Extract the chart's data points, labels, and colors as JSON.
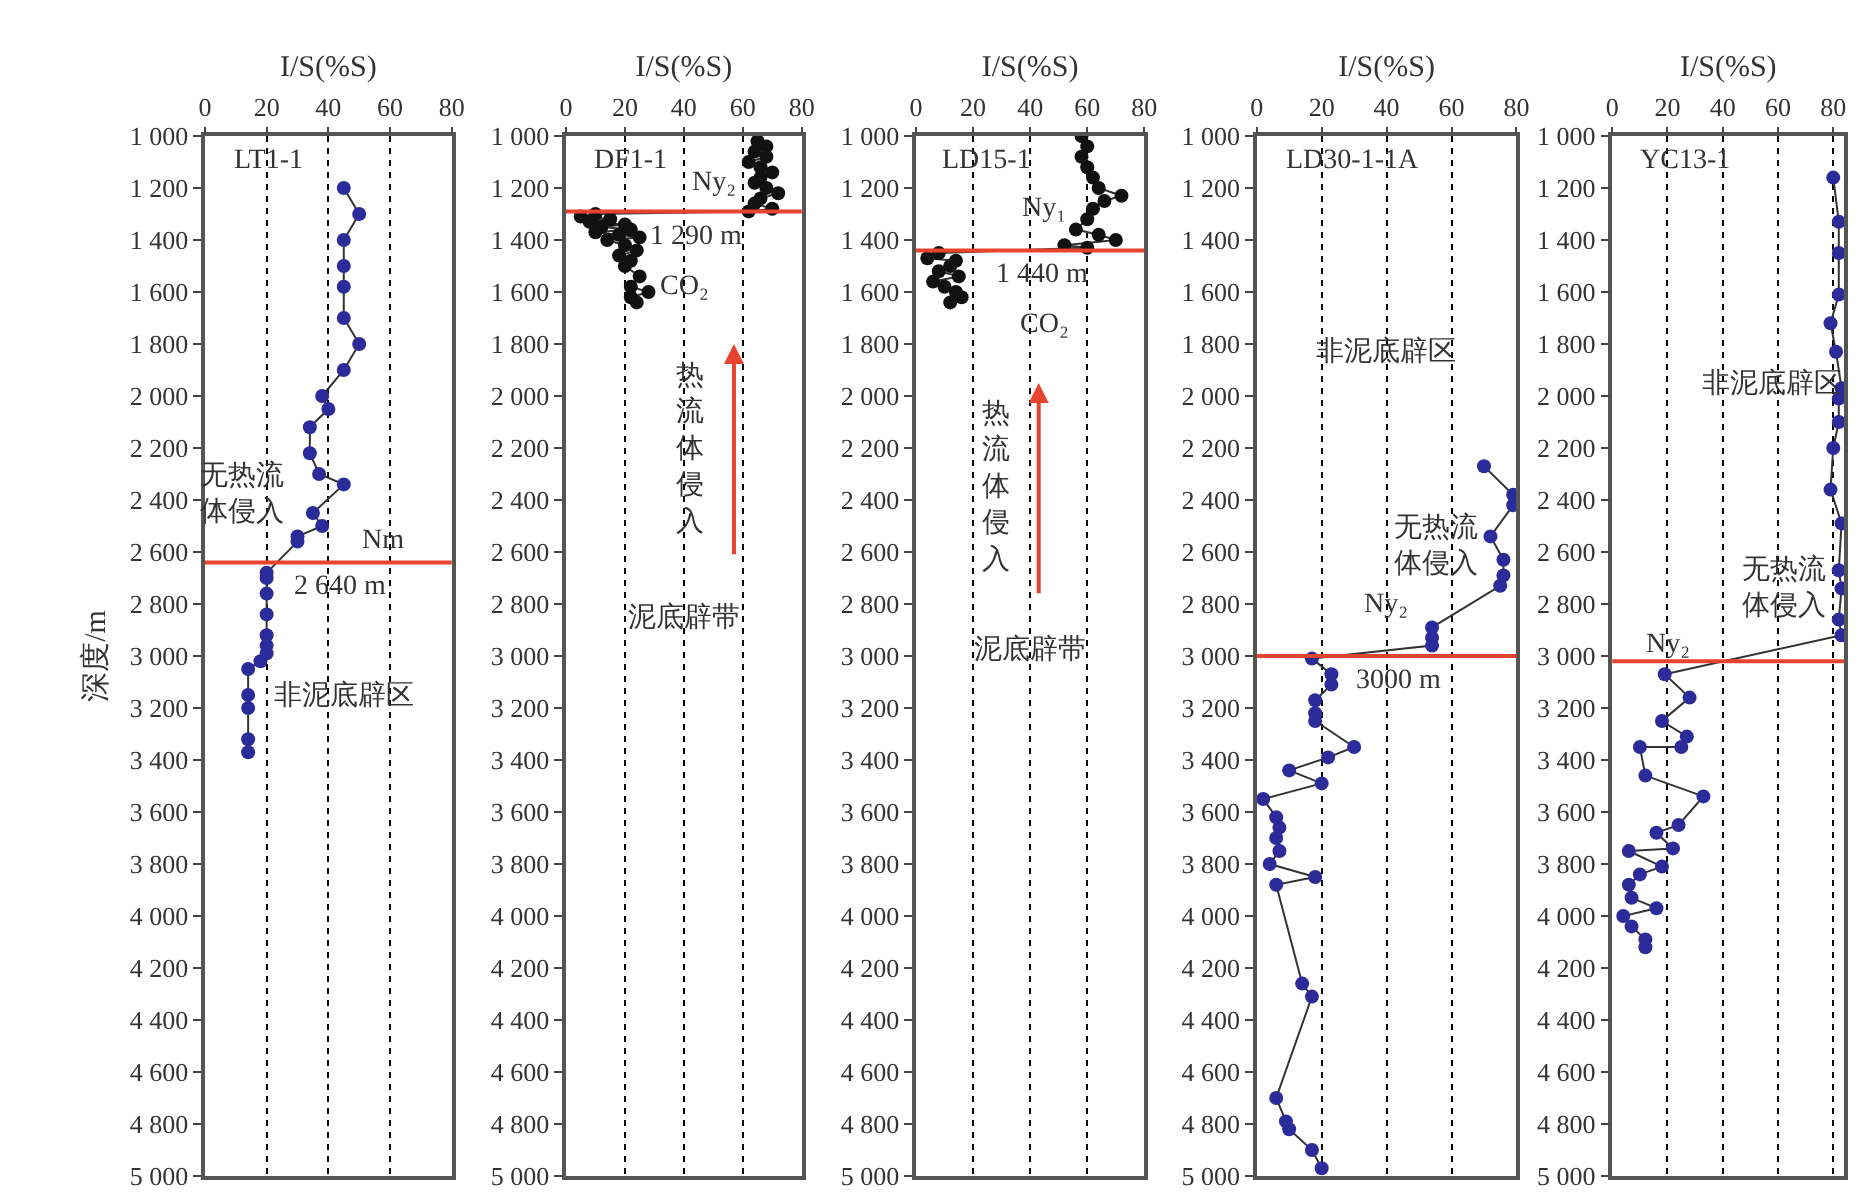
{
  "chart_data": [
    {
      "type": "line",
      "title": "LT1-1",
      "xlabel": "I/S(%S)",
      "ylabel": "深度/m",
      "xlim": [
        0,
        80
      ],
      "xticks": [
        0,
        20,
        40,
        60,
        80
      ],
      "ylim": [
        5000,
        1000
      ],
      "yticks": [
        {
          "value": 1000,
          "label": "1 000"
        },
        {
          "value": 1200,
          "label": "1 200"
        },
        {
          "value": 1400,
          "label": "1 400"
        },
        {
          "value": 1600,
          "label": "1 600"
        },
        {
          "value": 1800,
          "label": "1 800"
        },
        {
          "value": 2000,
          "label": "2 000"
        },
        {
          "value": 2200,
          "label": "2 200"
        },
        {
          "value": 2400,
          "label": "2 400"
        },
        {
          "value": 2600,
          "label": "2 600"
        },
        {
          "value": 2800,
          "label": "2 800"
        },
        {
          "value": 3000,
          "label": "3 000"
        },
        {
          "value": 3200,
          "label": "3 200"
        },
        {
          "value": 3400,
          "label": "3 400"
        },
        {
          "value": 3600,
          "label": "3 600"
        },
        {
          "value": 3800,
          "label": "3 800"
        },
        {
          "value": 4000,
          "label": "4 000"
        },
        {
          "value": 4200,
          "label": "4 200"
        },
        {
          "value": 4400,
          "label": "4 400"
        },
        {
          "value": 4600,
          "label": "4 600"
        },
        {
          "value": 4800,
          "label": "4 800"
        },
        {
          "value": 5000,
          "label": "5 000"
        }
      ],
      "grid": "x",
      "marker": "circle",
      "line_style": "solid",
      "series": [
        {
          "color": "#2b2b9a",
          "x": [
            45,
            50,
            45,
            45,
            45,
            45,
            50,
            45,
            38,
            40,
            34,
            34,
            37,
            45,
            35,
            38,
            30,
            30,
            20,
            20,
            20,
            20,
            20,
            20,
            20,
            18,
            14,
            14,
            14,
            14,
            14
          ],
          "values": [
            1200,
            1300,
            1400,
            1500,
            1580,
            1700,
            1800,
            1900,
            2000,
            2050,
            2120,
            2220,
            2300,
            2340,
            2450,
            2500,
            2540,
            2560,
            2680,
            2700,
            2760,
            2840,
            2920,
            2960,
            2990,
            3020,
            3050,
            3150,
            3200,
            3320,
            3370
          ]
        }
      ],
      "ref_lines": [
        {
          "axis": "y",
          "value": 2640,
          "label": "2 640 m",
          "color": "#e8432e"
        }
      ],
      "annotations": [
        "无热流体侵入",
        "Nm",
        "非泥底辟区"
      ]
    },
    {
      "type": "line",
      "title": "DF1-1",
      "xlabel": "I/S(%S)",
      "xlim": [
        0,
        80
      ],
      "xticks": [
        0,
        20,
        40,
        60,
        80
      ],
      "ylim": [
        5000,
        1000
      ],
      "yticks": [
        {
          "value": 1000,
          "label": "1 000"
        },
        {
          "value": 1200,
          "label": "1 200"
        },
        {
          "value": 1400,
          "label": "1 400"
        },
        {
          "value": 1600,
          "label": "1 600"
        },
        {
          "value": 1800,
          "label": "1 800"
        },
        {
          "value": 2000,
          "label": "2 000"
        },
        {
          "value": 2200,
          "label": "2 200"
        },
        {
          "value": 2400,
          "label": "2 400"
        },
        {
          "value": 2600,
          "label": "2 600"
        },
        {
          "value": 2800,
          "label": "2 800"
        },
        {
          "value": 3000,
          "label": "3 000"
        },
        {
          "value": 3200,
          "label": "3 200"
        },
        {
          "value": 3400,
          "label": "3 400"
        },
        {
          "value": 3600,
          "label": "3 600"
        },
        {
          "value": 3800,
          "label": "3 800"
        },
        {
          "value": 4000,
          "label": "4 000"
        },
        {
          "value": 4200,
          "label": "4 200"
        },
        {
          "value": 4400,
          "label": "4 400"
        },
        {
          "value": 4600,
          "label": "4 600"
        },
        {
          "value": 4800,
          "label": "4 800"
        },
        {
          "value": 5000,
          "label": "5 000"
        }
      ],
      "grid": "x",
      "marker": "circle",
      "line_style": "solid",
      "series": [
        {
          "color": "#111111",
          "x": [
            65,
            68,
            64,
            68,
            62,
            66,
            70,
            66,
            64,
            68,
            72,
            66,
            64,
            70,
            62,
            10,
            5,
            15,
            8,
            20,
            12,
            22,
            10,
            18,
            25,
            14,
            20,
            24,
            18,
            22,
            20,
            25,
            22,
            28,
            22,
            24
          ],
          "values": [
            1020,
            1040,
            1060,
            1080,
            1100,
            1120,
            1140,
            1160,
            1180,
            1200,
            1220,
            1240,
            1260,
            1280,
            1290,
            1300,
            1310,
            1320,
            1330,
            1340,
            1350,
            1360,
            1370,
            1380,
            1390,
            1400,
            1420,
            1440,
            1460,
            1480,
            1500,
            1540,
            1580,
            1600,
            1620,
            1640
          ]
        }
      ],
      "ref_lines": [
        {
          "axis": "y",
          "value": 1290,
          "label": "1 290 m",
          "color": "#e8432e"
        }
      ],
      "annotations": [
        "Ny₂",
        "CO₂",
        "热流体侵入",
        "泥底辟带"
      ]
    },
    {
      "type": "line",
      "title": "LD15-1",
      "xlabel": "I/S(%S)",
      "xlim": [
        0,
        80
      ],
      "xticks": [
        0,
        20,
        40,
        60,
        80
      ],
      "ylim": [
        5000,
        1000
      ],
      "yticks": [
        {
          "value": 1000,
          "label": "1 000"
        },
        {
          "value": 1200,
          "label": "1 200"
        },
        {
          "value": 1400,
          "label": "1 400"
        },
        {
          "value": 1600,
          "label": "1 600"
        },
        {
          "value": 1800,
          "label": "1 800"
        },
        {
          "value": 2000,
          "label": "2 000"
        },
        {
          "value": 2200,
          "label": "2 200"
        },
        {
          "value": 2400,
          "label": "2 400"
        },
        {
          "value": 2600,
          "label": "2 600"
        },
        {
          "value": 2800,
          "label": "2 800"
        },
        {
          "value": 3000,
          "label": "3 000"
        },
        {
          "value": 3200,
          "label": "3 200"
        },
        {
          "value": 3400,
          "label": "3 400"
        },
        {
          "value": 3600,
          "label": "3 600"
        },
        {
          "value": 3800,
          "label": "3 800"
        },
        {
          "value": 4000,
          "label": "4 000"
        },
        {
          "value": 4200,
          "label": "4 200"
        },
        {
          "value": 4400,
          "label": "4 400"
        },
        {
          "value": 4600,
          "label": "4 600"
        },
        {
          "value": 4800,
          "label": "4 800"
        },
        {
          "value": 5000,
          "label": "5 000"
        }
      ],
      "grid": "x",
      "marker": "circle",
      "line_style": "solid",
      "series": [
        {
          "color": "#111111",
          "x": [
            58,
            60,
            58,
            60,
            62,
            64,
            72,
            66,
            62,
            60,
            56,
            64,
            70,
            52,
            60,
            8,
            4,
            14,
            12,
            8,
            15,
            6,
            10,
            14,
            16,
            12
          ],
          "values": [
            1000,
            1040,
            1080,
            1120,
            1160,
            1200,
            1230,
            1250,
            1280,
            1320,
            1360,
            1380,
            1400,
            1420,
            1430,
            1450,
            1470,
            1480,
            1500,
            1520,
            1540,
            1560,
            1580,
            1600,
            1620,
            1640
          ]
        }
      ],
      "ref_lines": [
        {
          "axis": "y",
          "value": 1440,
          "label": "1 440 m",
          "color": "#e8432e"
        }
      ],
      "annotations": [
        "Ny₁",
        "CO₂",
        "热流体侵入",
        "泥底辟带"
      ]
    },
    {
      "type": "line",
      "title": "LD30-1-1A",
      "xlabel": "I/S(%S)",
      "xlim": [
        0,
        80
      ],
      "xticks": [
        0,
        20,
        40,
        60,
        80
      ],
      "ylim": [
        5000,
        1000
      ],
      "yticks": [
        {
          "value": 1000,
          "label": "1 000"
        },
        {
          "value": 1200,
          "label": "1 200"
        },
        {
          "value": 1400,
          "label": "1 400"
        },
        {
          "value": 1600,
          "label": "1 600"
        },
        {
          "value": 1800,
          "label": "1 800"
        },
        {
          "value": 2000,
          "label": "2 000"
        },
        {
          "value": 2200,
          "label": "2 200"
        },
        {
          "value": 2400,
          "label": "2 400"
        },
        {
          "value": 2600,
          "label": "2 600"
        },
        {
          "value": 2800,
          "label": "2 800"
        },
        {
          "value": 3000,
          "label": "3 000"
        },
        {
          "value": 3200,
          "label": "3 200"
        },
        {
          "value": 3400,
          "label": "3 400"
        },
        {
          "value": 3600,
          "label": "3 600"
        },
        {
          "value": 3800,
          "label": "3 800"
        },
        {
          "value": 4000,
          "label": "4 000"
        },
        {
          "value": 4200,
          "label": "4 200"
        },
        {
          "value": 4400,
          "label": "4 400"
        },
        {
          "value": 4600,
          "label": "4 600"
        },
        {
          "value": 4800,
          "label": "4 800"
        },
        {
          "value": 5000,
          "label": "5 000"
        }
      ],
      "grid": "x",
      "marker": "circle",
      "line_style": "solid",
      "series": [
        {
          "color": "#2b2b9a",
          "x": [
            70,
            79,
            79,
            72,
            76,
            76,
            75,
            54,
            54,
            54,
            17,
            23,
            23,
            18,
            18,
            18,
            30,
            22,
            10,
            20,
            2,
            6,
            7,
            6,
            7,
            4,
            18,
            6,
            14,
            17,
            6,
            9,
            10,
            17,
            20
          ],
          "values": [
            2270,
            2380,
            2420,
            2540,
            2630,
            2690,
            2730,
            2890,
            2930,
            2960,
            3010,
            3070,
            3110,
            3170,
            3220,
            3250,
            3350,
            3390,
            3440,
            3490,
            3550,
            3620,
            3660,
            3700,
            3750,
            3800,
            3850,
            3880,
            4260,
            4310,
            4700,
            4790,
            4820,
            4900,
            4970
          ]
        }
      ],
      "ref_lines": [
        {
          "axis": "y",
          "value": 3000,
          "label": "3000 m",
          "color": "#e8432e"
        }
      ],
      "annotations": [
        "非泥底辟区",
        "无热流体侵入",
        "Ny₂"
      ]
    },
    {
      "type": "line",
      "title": "YC13-1",
      "xlabel": "I/S(%S)",
      "xlim": [
        0,
        84
      ],
      "xticks": [
        0,
        20,
        40,
        60,
        80
      ],
      "ylim": [
        5000,
        1000
      ],
      "yticks": [
        {
          "value": 1000,
          "label": "1 000"
        },
        {
          "value": 1200,
          "label": "1 200"
        },
        {
          "value": 1400,
          "label": "1 400"
        },
        {
          "value": 1600,
          "label": "1 600"
        },
        {
          "value": 1800,
          "label": "1 800"
        },
        {
          "value": 2000,
          "label": "2 000"
        },
        {
          "value": 2200,
          "label": "2 200"
        },
        {
          "value": 2400,
          "label": "2 400"
        },
        {
          "value": 2600,
          "label": "2 600"
        },
        {
          "value": 2800,
          "label": "2 800"
        },
        {
          "value": 3000,
          "label": "3 000"
        },
        {
          "value": 3200,
          "label": "3 200"
        },
        {
          "value": 3400,
          "label": "3 400"
        },
        {
          "value": 3600,
          "label": "3 600"
        },
        {
          "value": 3800,
          "label": "3 800"
        },
        {
          "value": 4000,
          "label": "4 000"
        },
        {
          "value": 4200,
          "label": "4 200"
        },
        {
          "value": 4400,
          "label": "4 400"
        },
        {
          "value": 4600,
          "label": "4 600"
        },
        {
          "value": 4800,
          "label": "4 800"
        },
        {
          "value": 5000,
          "label": "5 000"
        }
      ],
      "grid": "x",
      "marker": "circle",
      "line_style": "solid",
      "series": [
        {
          "color": "#2b2b9a",
          "x": [
            80,
            82,
            82,
            82,
            79,
            81,
            83,
            82,
            82,
            80,
            79,
            83,
            82,
            83,
            82,
            83,
            19,
            28,
            18,
            27,
            25,
            10,
            12,
            33,
            24,
            16,
            22,
            6,
            18,
            10,
            6,
            7,
            16,
            4,
            7,
            12,
            12
          ],
          "values": [
            1160,
            1330,
            1450,
            1610,
            1720,
            1830,
            1970,
            2010,
            2100,
            2200,
            2360,
            2490,
            2670,
            2740,
            2860,
            2920,
            3070,
            3160,
            3250,
            3310,
            3350,
            3350,
            3460,
            3540,
            3650,
            3680,
            3740,
            3750,
            3810,
            3840,
            3880,
            3930,
            3970,
            4000,
            4040,
            4090,
            4120
          ]
        }
      ],
      "ref_lines": [
        {
          "axis": "y",
          "value": 3020,
          "color": "#e8432e"
        }
      ],
      "annotations": [
        "非泥底辟区",
        "无热流体侵入",
        "Ny₂"
      ]
    }
  ]
}
